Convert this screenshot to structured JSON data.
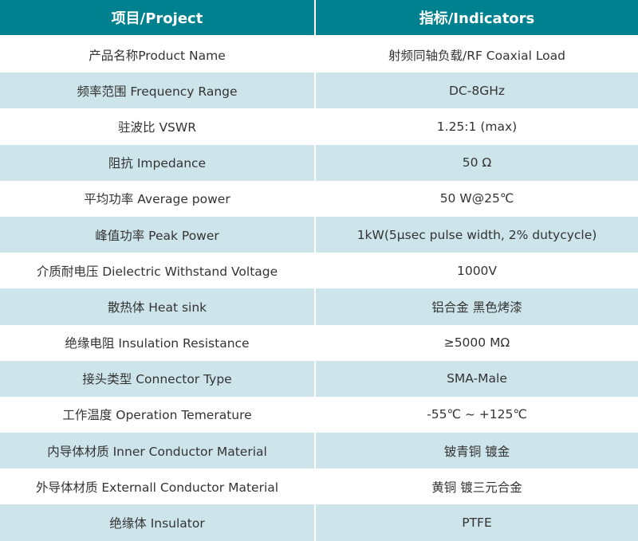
{
  "header": {
    "project": "项目/Project",
    "indicators": "指标/Indicators"
  },
  "colors": {
    "header_bg": "#00818f",
    "alt_row_bg": "#cde5ea"
  },
  "rows": [
    {
      "project": "产品名称Product Name",
      "value": "射频同轴负载/RF Coaxial Load"
    },
    {
      "project": "频率范围 Frequency Range",
      "value": "DC-8GHz"
    },
    {
      "project": "驻波比 VSWR",
      "value": "1.25:1 (max)"
    },
    {
      "project": "阻抗 Impedance",
      "value": "50 Ω"
    },
    {
      "project": "平均功率 Average power",
      "value": "50 W@25℃"
    },
    {
      "project": "峰值功率 Peak Power",
      "value": "1kW(5μsec pulse width, 2% dutycycle)"
    },
    {
      "project": "介质耐电压 Dielectric Withstand Voltage",
      "value": "1000V"
    },
    {
      "project": "散热体 Heat sink",
      "value": "铝合金 黑色烤漆"
    },
    {
      "project": "绝缘电阻 Insulation Resistance",
      "value": "≥5000 MΩ"
    },
    {
      "project": "接头类型 Connector Type",
      "value": "SMA-Male"
    },
    {
      "project": "工作温度 Operation Temerature",
      "value": "-55℃ ~ +125℃"
    },
    {
      "project": "内导体材质 Inner Conductor Material",
      "value": "铍青铜 镀金"
    },
    {
      "project": "外导体材质 Externall Conductor Material",
      "value": "黄铜 镀三元合金"
    },
    {
      "project": "绝缘体 Insulator",
      "value": "PTFE"
    }
  ]
}
